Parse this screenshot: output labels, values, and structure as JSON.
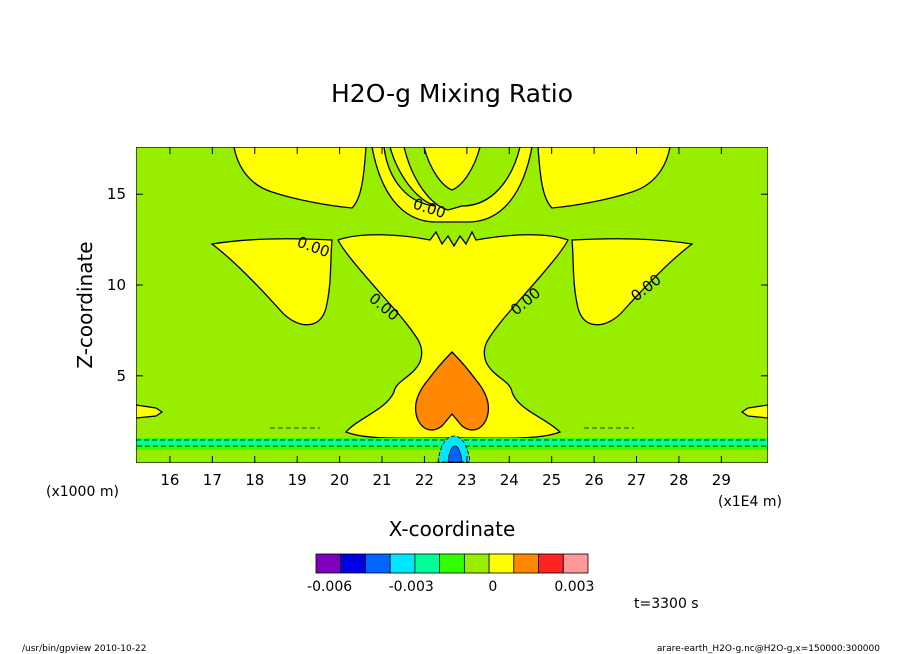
{
  "chart_data": {
    "type": "contour",
    "title": "H2O-g Mixing Ratio",
    "xlabel": "X-coordinate",
    "ylabel": "Z-coordinate",
    "x_unit": "(x1E4 m)",
    "y_unit": "(x1000 m)",
    "xlim": [
      15.2,
      30.1
    ],
    "ylim": [
      0.2,
      17.6
    ],
    "x_ticks": [
      "16",
      "17",
      "18",
      "19",
      "20",
      "21",
      "22",
      "23",
      "24",
      "25",
      "26",
      "27",
      "28",
      "29"
    ],
    "y_ticks": [
      "5",
      "10",
      "15"
    ],
    "contour_label": "0.00",
    "colorbar": {
      "colors": [
        "#7f00bf",
        "#0000e6",
        "#0066ff",
        "#00e6ff",
        "#00ff99",
        "#33ff00",
        "#99ee00",
        "#ffff00",
        "#ff8800",
        "#ff2222",
        "#ff9999"
      ],
      "tick_labels": [
        {
          "label": "-0.006",
          "value": -0.006
        },
        {
          "label": "-0.003",
          "value": -0.003
        },
        {
          "label": "0",
          "value": 0
        },
        {
          "label": "0.003",
          "value": 0.003
        }
      ]
    },
    "time_label": "t=3300 s"
  },
  "footer": {
    "left": "/usr/bin/gpview   2010-10-22",
    "right": "arare-earth_H2O-g.nc@H2O-g,x=150000:300000"
  },
  "colors": {
    "background_field": "#99ee00",
    "positive_region": "#ffff00",
    "core": "#ff8800",
    "negative_band": "#33ff00",
    "negative_band2": "#00ff99",
    "center_blue": "#00e6ff"
  }
}
